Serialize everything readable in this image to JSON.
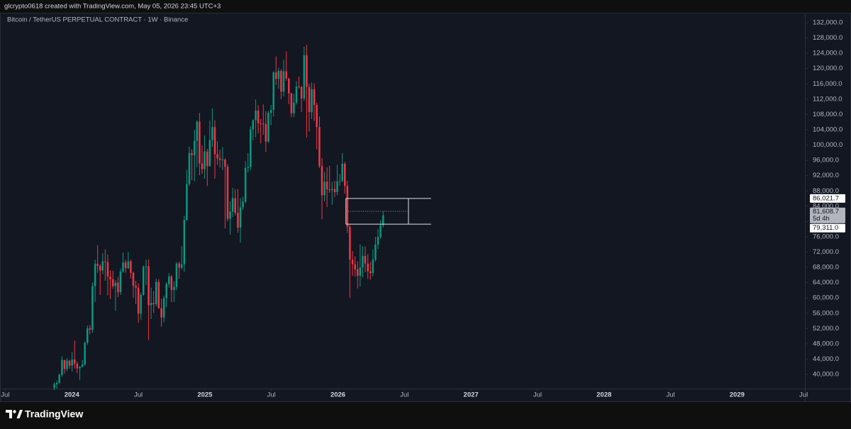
{
  "header": "glcrypto0618 created with TradingView.com, May 05, 2026 23:45 UTC+3",
  "footer": {
    "brand": "TradingView"
  },
  "chart_data": {
    "type": "candlestick",
    "title": "Bitcoin / TetherUS PERPETUAL CONTRACT · 1W · Binance",
    "up_color": "#089981",
    "down_color": "#f23645",
    "grid": false,
    "x": [
      2023.868,
      2023.887,
      2023.906,
      2023.926,
      2023.945,
      2023.964,
      2023.983,
      2024.002,
      2024.021,
      2024.04,
      2024.06,
      2024.079,
      2024.098,
      2024.117,
      2024.136,
      2024.155,
      2024.175,
      2024.194,
      2024.213,
      2024.232,
      2024.251,
      2024.27,
      2024.289,
      2024.309,
      2024.328,
      2024.347,
      2024.366,
      2024.385,
      2024.404,
      2024.424,
      2024.443,
      2024.462,
      2024.481,
      2024.5,
      2024.519,
      2024.538,
      2024.558,
      2024.577,
      2024.596,
      2024.615,
      2024.634,
      2024.653,
      2024.673,
      2024.692,
      2024.711,
      2024.73,
      2024.749,
      2024.768,
      2024.787,
      2024.807,
      2024.826,
      2024.845,
      2024.864,
      2024.883,
      2024.902,
      2024.922,
      2024.941,
      2024.96,
      2024.979,
      2024.998,
      2025.018,
      2025.037,
      2025.056,
      2025.075,
      2025.094,
      2025.113,
      2025.133,
      2025.152,
      2025.171,
      2025.19,
      2025.209,
      2025.228,
      2025.248,
      2025.267,
      2025.286,
      2025.305,
      2025.324,
      2025.343,
      2025.362,
      2025.382,
      2025.401,
      2025.42,
      2025.439,
      2025.458,
      2025.477,
      2025.497,
      2025.516,
      2025.535,
      2025.554,
      2025.573,
      2025.592,
      2025.612,
      2025.631,
      2025.65,
      2025.669,
      2025.688,
      2025.707,
      2025.726,
      2025.746,
      2025.765,
      2025.784,
      2025.803,
      2025.822,
      2025.841,
      2025.861,
      2025.88,
      2025.899,
      2025.918,
      2025.937,
      2025.956,
      2025.976,
      2025.995,
      2026.014,
      2026.033,
      2026.052,
      2026.071,
      2026.09,
      2026.11,
      2026.129,
      2026.148,
      2026.167,
      2026.186,
      2026.205,
      2026.225,
      2026.244,
      2026.263,
      2026.282,
      2026.301,
      2026.32,
      2026.34
    ],
    "open": [
      36500,
      37400,
      37800,
      39900,
      43800,
      41400,
      43600,
      42300,
      43900,
      42800,
      41600,
      42000,
      42600,
      48300,
      52100,
      51700,
      63100,
      68900,
      68400,
      67200,
      69600,
      69400,
      65600,
      64900,
      63100,
      64000,
      61500,
      66900,
      69300,
      67800,
      69600,
      66600,
      63200,
      62700,
      55900,
      60800,
      68200,
      68300,
      58100,
      58700,
      58400,
      64200,
      57300,
      54900,
      60000,
      63600,
      65600,
      62100,
      62900,
      69000,
      67900,
      68800,
      80400,
      89800,
      97900,
      97300,
      101100,
      106100,
      95200,
      93700,
      98300,
      94500,
      101300,
      104700,
      97600,
      96500,
      96100,
      96200,
      94300,
      80700,
      82600,
      86100,
      82300,
      78400,
      83700,
      85200,
      94000,
      94300,
      104100,
      106500,
      109000,
      105700,
      105600,
      105500,
      100900,
      108400,
      109200,
      119000,
      117300,
      119400,
      114000,
      119300,
      117400,
      113500,
      108300,
      111100,
      115300,
      115200,
      112200,
      123500,
      115200,
      108600,
      114600,
      110500,
      104700,
      94500,
      86900,
      90400,
      88400,
      88200,
      88500,
      87700,
      90500,
      90600,
      95100,
      89300,
      78600,
      70000,
      68800,
      67500,
      65800,
      68000,
      71000,
      69000,
      67000,
      66500,
      70000,
      74000,
      76000,
      79000
    ],
    "high": [
      37900,
      38400,
      40200,
      44700,
      43400,
      44300,
      43800,
      45900,
      48900,
      43400,
      42200,
      43800,
      48600,
      52800,
      52900,
      64000,
      70000,
      73800,
      68900,
      71700,
      72700,
      71300,
      67200,
      67100,
      64700,
      65500,
      67700,
      71900,
      70000,
      72000,
      70000,
      66900,
      64500,
      63800,
      61400,
      68500,
      70000,
      70100,
      62700,
      61800,
      65000,
      64900,
      59800,
      60600,
      64100,
      66500,
      66000,
      64400,
      69400,
      69500,
      73600,
      81500,
      93500,
      99600,
      98900,
      104000,
      106500,
      108400,
      99900,
      102500,
      99000,
      106400,
      109600,
      106500,
      101000,
      98800,
      99500,
      96500,
      95000,
      85300,
      88800,
      88500,
      88500,
      86100,
      86500,
      95800,
      97900,
      104900,
      106700,
      111900,
      110400,
      106800,
      110600,
      108900,
      108900,
      110500,
      119300,
      123200,
      120200,
      119800,
      122300,
      124500,
      117600,
      113700,
      113400,
      116700,
      117900,
      115400,
      125700,
      126200,
      116100,
      116400,
      116100,
      111000,
      107500,
      96600,
      93000,
      94200,
      94600,
      90400,
      90600,
      94800,
      92500,
      97900,
      95600,
      90600,
      79400,
      72300,
      70900,
      69500,
      74000,
      73500,
      73500,
      71500,
      69500,
      72700,
      76000,
      78000,
      80300,
      82700
    ],
    "low": [
      35900,
      36300,
      37500,
      39400,
      40200,
      40800,
      41500,
      40700,
      41500,
      40300,
      38500,
      41900,
      42300,
      47700,
      50500,
      50900,
      59000,
      66600,
      60800,
      66200,
      64500,
      60700,
      59700,
      62400,
      56600,
      60200,
      60800,
      66600,
      66600,
      67600,
      65100,
      60000,
      58400,
      53500,
      54300,
      60600,
      63400,
      49000,
      54500,
      56100,
      57800,
      57200,
      52500,
      53600,
      57600,
      62700,
      58900,
      58900,
      62000,
      65000,
      67400,
      66800,
      80200,
      89300,
      90800,
      90500,
      94200,
      92100,
      92500,
      91200,
      89300,
      94300,
      99500,
      91200,
      94800,
      94100,
      93400,
      78200,
      80000,
      76600,
      81200,
      81600,
      77100,
      74500,
      83000,
      84800,
      92800,
      93400,
      101300,
      102100,
      103100,
      100400,
      102700,
      98200,
      100600,
      105200,
      107500,
      115700,
      114700,
      112000,
      112700,
      116800,
      110700,
      107300,
      107300,
      110600,
      114800,
      108600,
      111600,
      102000,
      103500,
      106800,
      106300,
      98900,
      94000,
      80600,
      85300,
      83800,
      87500,
      84400,
      86400,
      86900,
      89300,
      90300,
      87300,
      77000,
      60000,
      65800,
      65600,
      62500,
      63000,
      65400,
      66700,
      65000,
      64800,
      65700,
      69500,
      72800,
      75500,
      78400
    ],
    "close": [
      37400,
      37800,
      39900,
      43800,
      41400,
      43600,
      42300,
      43900,
      42800,
      41600,
      42000,
      42600,
      48300,
      52100,
      51700,
      63100,
      68900,
      68400,
      67200,
      69600,
      69400,
      65600,
      64900,
      63100,
      64000,
      61500,
      66900,
      69300,
      67800,
      69600,
      66600,
      63200,
      62700,
      55900,
      60800,
      68200,
      68300,
      58100,
      58700,
      58400,
      64200,
      57300,
      54900,
      60000,
      63600,
      65600,
      62100,
      62900,
      69000,
      67900,
      68800,
      80400,
      89800,
      97900,
      97300,
      101100,
      106100,
      95200,
      93700,
      98300,
      94500,
      101300,
      104700,
      97600,
      96500,
      96100,
      96200,
      94300,
      80700,
      82600,
      86100,
      82300,
      78400,
      83700,
      85200,
      94000,
      94300,
      104100,
      106500,
      109000,
      105700,
      105600,
      105500,
      100900,
      108400,
      109200,
      119000,
      117300,
      119400,
      114000,
      119300,
      117400,
      113500,
      108300,
      111100,
      115300,
      115200,
      112200,
      123500,
      115200,
      108600,
      114600,
      110500,
      104700,
      94500,
      86900,
      90400,
      88400,
      88200,
      88500,
      87700,
      90500,
      90600,
      95100,
      89300,
      78600,
      70000,
      68800,
      67500,
      65800,
      68000,
      71000,
      69000,
      67000,
      66500,
      70000,
      74000,
      76000,
      79000,
      81608.7
    ],
    "last_price": {
      "value": 81608.7,
      "label": "81,608.7",
      "countdown": "5d 4h"
    },
    "levels": [
      {
        "value": 86021.7,
        "label": "86,021.7"
      },
      {
        "value": 79311.0,
        "label": "79,311.0"
      }
    ],
    "box": {
      "x": [
        2026.06,
        2026.7
      ],
      "divider_x": 2026.53
    },
    "xlim": [
      2023.46,
      2029.51
    ],
    "xticks": [
      {
        "value": 2023.5,
        "label": "Jul"
      },
      2024,
      {
        "value": 2024.5,
        "label": "Jul"
      },
      2025,
      {
        "value": 2025.5,
        "label": "Jul"
      },
      2026,
      {
        "value": 2026.5,
        "label": "Jul"
      },
      2027,
      {
        "value": 2027.5,
        "label": "Jul"
      },
      2028,
      {
        "value": 2028.5,
        "label": "Jul"
      },
      2029,
      {
        "value": 2029.5,
        "label": "Jul"
      }
    ],
    "ylim": [
      36300,
      134600
    ],
    "yticks": [
      {
        "value": 40000,
        "label": "40,000.0"
      },
      {
        "value": 44000,
        "label": "44,000.0"
      },
      {
        "value": 48000,
        "label": "48,000.0"
      },
      {
        "value": 52000,
        "label": "52,000.0"
      },
      {
        "value": 56000,
        "label": "56,000.0"
      },
      {
        "value": 60000,
        "label": "60,000.0"
      },
      {
        "value": 64000,
        "label": "64,000.0"
      },
      {
        "value": 68000,
        "label": "68,000.0"
      },
      {
        "value": 72000,
        "label": "72,000.0"
      },
      {
        "value": 76000,
        "label": "76,000.0"
      },
      {
        "value": 80000,
        "label": "80,000.0"
      },
      {
        "value": 84000,
        "label": "84,000.0"
      },
      {
        "value": 88000,
        "label": "88,000.0"
      },
      {
        "value": 92000,
        "label": "92,000.0"
      },
      {
        "value": 96000,
        "label": "96,000.0"
      },
      {
        "value": 100000,
        "label": "100,000.0"
      },
      {
        "value": 104000,
        "label": "104,000.0"
      },
      {
        "value": 108000,
        "label": "108,000.0"
      },
      {
        "value": 112000,
        "label": "112,000.0"
      },
      {
        "value": 116000,
        "label": "116,000.0"
      },
      {
        "value": 120000,
        "label": "120,000.0"
      },
      {
        "value": 124000,
        "label": "124,000.0"
      },
      {
        "value": 128000,
        "label": "128,000.0"
      },
      {
        "value": 132000,
        "label": "132,000.0"
      }
    ]
  }
}
